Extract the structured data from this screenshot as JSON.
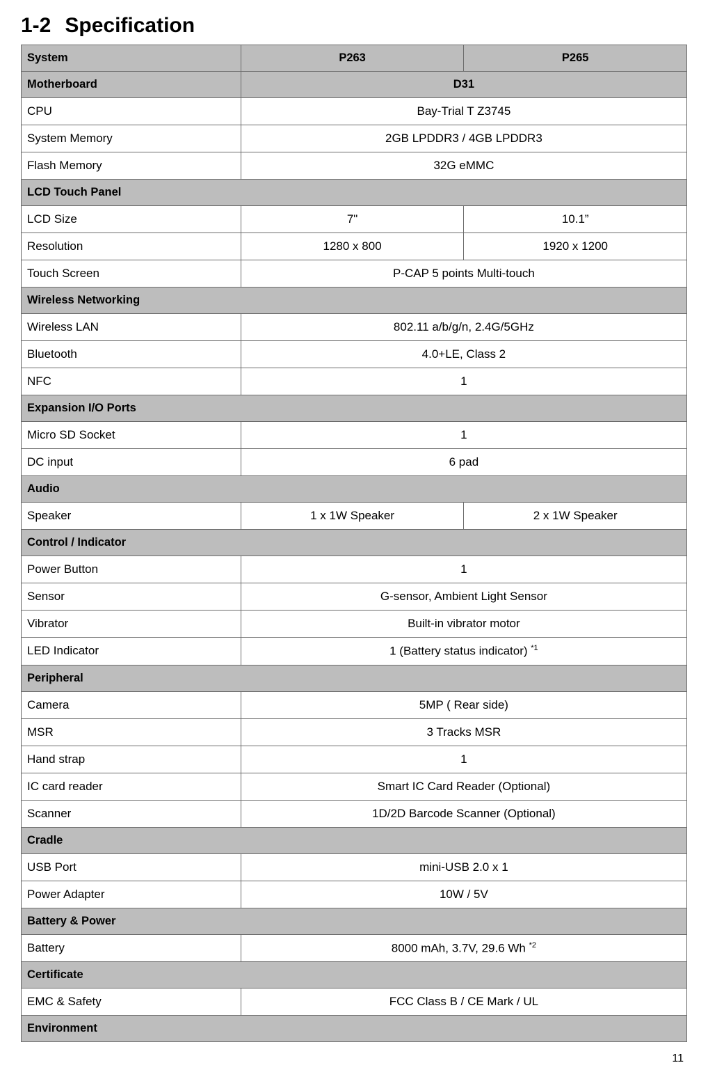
{
  "heading": {
    "number": "1-2",
    "title": "Specification"
  },
  "table": {
    "header": {
      "label": "System",
      "col1": "P263",
      "col2": "P265"
    },
    "rows": [
      {
        "type": "merged-header",
        "label": "Motherboard",
        "value": "D31"
      },
      {
        "type": "merged",
        "label": "CPU",
        "value": "Bay-Trial T Z3745"
      },
      {
        "type": "merged",
        "label": "System Memory",
        "value": "2GB LPDDR3 / 4GB LPDDR3"
      },
      {
        "type": "merged",
        "label": "Flash Memory",
        "value": "32G eMMC"
      },
      {
        "type": "section",
        "label": "LCD Touch Panel"
      },
      {
        "type": "split",
        "label": "LCD Size",
        "col1": "7\"",
        "col2": "10.1”"
      },
      {
        "type": "split",
        "label": "Resolution",
        "col1": "1280 x 800",
        "col2": "1920 x 1200"
      },
      {
        "type": "merged",
        "label": "Touch Screen",
        "value": "P-CAP 5 points Multi-touch"
      },
      {
        "type": "section",
        "label": "Wireless Networking"
      },
      {
        "type": "merged",
        "label": "Wireless LAN",
        "value": "802.11 a/b/g/n, 2.4G/5GHz"
      },
      {
        "type": "merged",
        "label": "Bluetooth",
        "value": "4.0+LE, Class 2"
      },
      {
        "type": "merged",
        "label": "NFC",
        "value": "1"
      },
      {
        "type": "section",
        "label": "Expansion I/O Ports"
      },
      {
        "type": "merged",
        "label": "Micro SD Socket",
        "value": "1"
      },
      {
        "type": "merged",
        "label": "DC input",
        "value": "6 pad"
      },
      {
        "type": "section",
        "label": "Audio"
      },
      {
        "type": "split",
        "label": "Speaker",
        "col1": "1 x 1W Speaker",
        "col2": "2 x 1W Speaker"
      },
      {
        "type": "section",
        "label": "Control / Indicator"
      },
      {
        "type": "merged",
        "label": "Power Button",
        "value": "1"
      },
      {
        "type": "merged",
        "label": "Sensor",
        "value": "G-sensor, Ambient Light Sensor"
      },
      {
        "type": "merged",
        "label": "Vibrator",
        "value": "Built-in vibrator motor"
      },
      {
        "type": "merged-sup",
        "label": "LED Indicator",
        "value": "1 (Battery status indicator) ",
        "sup": "*1"
      },
      {
        "type": "section",
        "label": "Peripheral"
      },
      {
        "type": "merged",
        "label": "Camera",
        "value": "5MP ( Rear side)"
      },
      {
        "type": "merged",
        "label": "MSR",
        "value": "3 Tracks MSR"
      },
      {
        "type": "merged",
        "label": "Hand strap",
        "value": "1"
      },
      {
        "type": "merged",
        "label": "IC card reader",
        "value": "Smart IC Card Reader (Optional)"
      },
      {
        "type": "merged",
        "label": "Scanner",
        "value": "1D/2D Barcode Scanner (Optional)"
      },
      {
        "type": "section",
        "label": "Cradle"
      },
      {
        "type": "merged",
        "label": "USB Port",
        "value": "mini-USB 2.0 x 1"
      },
      {
        "type": "merged",
        "label": "Power Adapter",
        "value": "10W / 5V"
      },
      {
        "type": "section",
        "label": "Battery & Power"
      },
      {
        "type": "merged-sup",
        "label": "Battery",
        "value": "8000 mAh, 3.7V, 29.6 Wh ",
        "sup": "*2"
      },
      {
        "type": "section",
        "label": "Certificate"
      },
      {
        "type": "merged",
        "label": "EMC & Safety",
        "value": "FCC Class B / CE Mark / UL"
      },
      {
        "type": "section",
        "label": "Environment"
      }
    ]
  },
  "page_number": "11",
  "colors": {
    "section_bg": "#bdbdbd",
    "border": "#6b6b6b",
    "text": "#000000",
    "page_bg": "#ffffff"
  }
}
